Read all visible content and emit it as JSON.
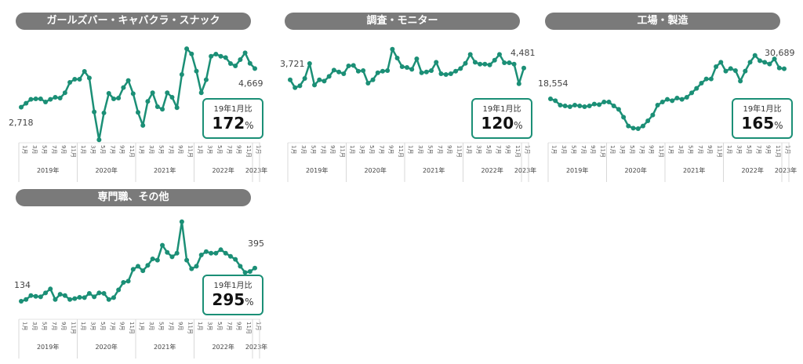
{
  "colors": {
    "line": "#1b8f76",
    "pill": "#7a7a7a",
    "box_border": "#1b8f76"
  },
  "axis": {
    "months": [
      "1月",
      "3月",
      "5月",
      "7月",
      "9月",
      "11月"
    ],
    "years": [
      "2019年",
      "2020年",
      "2021年",
      "2022年",
      "2023年"
    ],
    "last_month": "1月"
  },
  "ratio_caption": "19年1月比",
  "percent_sign": "%",
  "chart_data": [
    {
      "type": "line",
      "title": "ガールズバー・キャバクラ・スナック",
      "start_label": "2,718",
      "end_label": "4,669",
      "ratio": "172",
      "x_range": "2019-01 to 2023-01",
      "ylim": [
        1000,
        5950
      ],
      "values": [
        2718,
        2916,
        3113,
        3140,
        3140,
        2982,
        3113,
        3219,
        3179,
        3443,
        3970,
        4128,
        4128,
        4524,
        4194,
        2481,
        1070,
        2428,
        3417,
        3140,
        3179,
        3707,
        4062,
        3403,
        2454,
        1795,
        3008,
        3443,
        2744,
        2613,
        3443,
        3219,
        2692,
        4366,
        5670,
        5407,
        4537,
        3443,
        4102,
        5288,
        5394,
        5288,
        5222,
        4919,
        4800,
        5117,
        5459,
        4932,
        4669
      ]
    },
    {
      "type": "line",
      "title": "調査・モニター",
      "start_label": "3,721",
      "end_label": "4,481",
      "ratio": "120",
      "x_range": "2019-01 to 2023-01",
      "ylim": [
        -250,
        6090
      ],
      "values": [
        3721,
        3214,
        3332,
        3806,
        4769,
        3383,
        3721,
        3637,
        3941,
        4346,
        4228,
        4110,
        4617,
        4651,
        4279,
        4313,
        3501,
        3721,
        4177,
        4279,
        4313,
        5698,
        5124,
        4566,
        4515,
        4397,
        5073,
        4177,
        4228,
        4313,
        4853,
        4110,
        4059,
        4110,
        4279,
        4448,
        4786,
        5360,
        4853,
        4735,
        4735,
        4684,
        4989,
        5360,
        4820,
        4820,
        4735,
        3468,
        4481
      ]
    },
    {
      "type": "line",
      "title": "工場・製造",
      "start_label": "18,554",
      "end_label": "30,689",
      "ratio": "165",
      "x_range": "2019-01 to 2023-01",
      "ylim": [
        1460,
        41030
      ],
      "values": [
        18554,
        17816,
        16022,
        15706,
        15389,
        16022,
        15706,
        15389,
        15706,
        16444,
        16233,
        17288,
        17288,
        15706,
        14334,
        11169,
        7582,
        6738,
        6527,
        7582,
        9692,
        12013,
        16022,
        17288,
        18343,
        17816,
        18871,
        18343,
        19187,
        20981,
        22774,
        24884,
        26572,
        26572,
        31531,
        33324,
        29737,
        30792,
        29948,
        25728,
        29737,
        33324,
        36067,
        33957,
        33324,
        32586,
        34641,
        31003,
        30689
      ]
    },
    {
      "type": "line",
      "title": "専門職、その他",
      "start_label": "134",
      "end_label": "395",
      "ratio": "295",
      "x_range": "2019-01 to 2023-01",
      "ylim": [
        5,
        775
      ],
      "values": [
        134,
        148,
        179,
        173,
        169,
        200,
        231,
        148,
        189,
        179,
        148,
        155,
        165,
        163,
        196,
        169,
        200,
        196,
        148,
        163,
        224,
        282,
        292,
        385,
        409,
        374,
        416,
        467,
        457,
        574,
        518,
        483,
        512,
        759,
        457,
        389,
        409,
        498,
        524,
        512,
        512,
        539,
        512,
        487,
        463,
        409,
        360,
        368,
        395
      ]
    }
  ]
}
